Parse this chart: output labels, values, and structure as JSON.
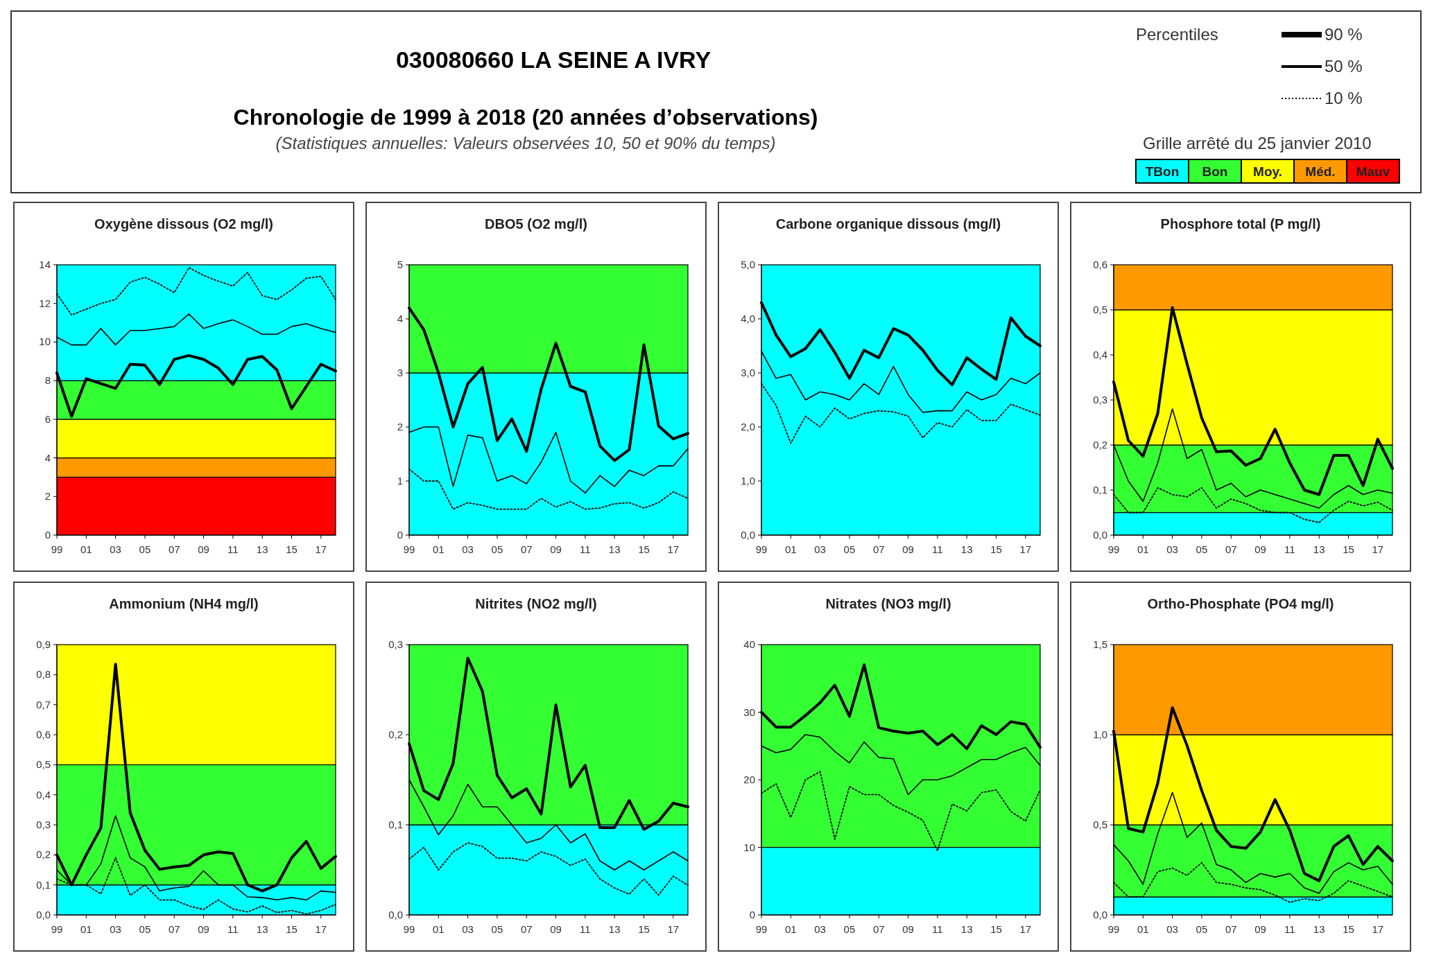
{
  "chart_data": [
    {
      "type": "other",
      "title": "030080660 LA SEINE A IVRY",
      "subtitle": "Chronologie de 1999 à 2018 (20 années d’observations)",
      "annotations": [
        "(Statistiques annuelles: Valeurs observées 10, 50 et 90% du temps)",
        "Grille arrêté du 25 janvier 2010"
      ],
      "categories": [
        "TBon",
        "Bon",
        "Moy.",
        "Méd.",
        "Mauv"
      ],
      "colors": [
        "#00ffff",
        "#33ff33",
        "#ffff00",
        "#ff9900",
        "#ff0000"
      ]
    },
    {
      "type": "line",
      "title": "Oxygène dissous (O2 mg/l)",
      "legend_title": "Percentiles",
      "legend": "top right",
      "x": [
        1999,
        2000,
        2001,
        2002,
        2003,
        2004,
        2005,
        2006,
        2007,
        2008,
        2009,
        2010,
        2011,
        2012,
        2013,
        2014,
        2015,
        2016,
        2017,
        2018
      ],
      "xlim": [
        1999,
        2018
      ],
      "xticks": [
        {
          "value": 1999,
          "label": "99"
        },
        {
          "value": 2001,
          "label": "01"
        },
        {
          "value": 2003,
          "label": "03"
        },
        {
          "value": 2005,
          "label": "05"
        },
        {
          "value": 2007,
          "label": "07"
        },
        {
          "value": 2009,
          "label": "09"
        },
        {
          "value": 2011,
          "label": "11"
        },
        {
          "value": 2013,
          "label": "13"
        },
        {
          "value": 2015,
          "label": "15"
        },
        {
          "value": 2017,
          "label": "17"
        }
      ],
      "ylim": [
        0,
        14
      ],
      "yticks": [
        0,
        2,
        4,
        6,
        8,
        10,
        12,
        14
      ],
      "bands": [
        {
          "axis": "y",
          "from": 0,
          "to": 3,
          "color": "#ff0000"
        },
        {
          "axis": "y",
          "from": 3,
          "to": 4,
          "color": "#ff9900"
        },
        {
          "axis": "y",
          "from": 4,
          "to": 6,
          "color": "#ffff00"
        },
        {
          "axis": "y",
          "from": 6,
          "to": 8,
          "color": "#33ff33"
        },
        {
          "axis": "y",
          "from": 8,
          "to": 14,
          "color": "#00ffff"
        }
      ],
      "series": [
        {
          "name": "90 %",
          "color": "#000000",
          "line_style": "solid",
          "values": [
            8.4,
            6.15,
            8.1,
            7.85,
            7.6,
            8.85,
            8.8,
            7.8,
            9.1,
            9.3,
            9.1,
            8.65,
            7.8,
            9.1,
            9.25,
            8.55,
            6.55,
            7.7,
            8.85,
            8.5
          ]
        },
        {
          "name": "50 %",
          "color": "#000000",
          "line_style": "solid",
          "values": [
            10.25,
            9.85,
            9.85,
            10.7,
            9.85,
            10.6,
            10.6,
            10.7,
            10.8,
            11.45,
            10.7,
            10.95,
            11.15,
            10.8,
            10.4,
            10.4,
            10.8,
            10.95,
            10.7,
            10.5
          ]
        },
        {
          "name": "10 %",
          "color": "#000000",
          "line_style": "dotted",
          "values": [
            12.5,
            11.4,
            11.7,
            12.0,
            12.2,
            13.1,
            13.35,
            13.0,
            12.55,
            13.85,
            13.45,
            13.15,
            12.9,
            13.6,
            12.4,
            12.2,
            12.7,
            13.3,
            13.4,
            12.2
          ]
        }
      ]
    },
    {
      "type": "line",
      "title": "DBO5 (O2 mg/l)",
      "x": [
        1999,
        2000,
        2001,
        2002,
        2003,
        2004,
        2005,
        2006,
        2007,
        2008,
        2009,
        2010,
        2011,
        2012,
        2013,
        2014,
        2015,
        2016,
        2017,
        2018
      ],
      "xlim": [
        1999,
        2018
      ],
      "xticks": [
        {
          "value": 1999,
          "label": "99"
        },
        {
          "value": 2001,
          "label": "01"
        },
        {
          "value": 2003,
          "label": "03"
        },
        {
          "value": 2005,
          "label": "05"
        },
        {
          "value": 2007,
          "label": "07"
        },
        {
          "value": 2009,
          "label": "09"
        },
        {
          "value": 2011,
          "label": "11"
        },
        {
          "value": 2013,
          "label": "13"
        },
        {
          "value": 2015,
          "label": "15"
        },
        {
          "value": 2017,
          "label": "17"
        }
      ],
      "ylim": [
        0,
        5
      ],
      "yticks": [
        0,
        1,
        2,
        3,
        4,
        5
      ],
      "bands": [
        {
          "axis": "y",
          "from": 0,
          "to": 3,
          "color": "#00ffff"
        },
        {
          "axis": "y",
          "from": 3,
          "to": 5,
          "color": "#33ff33"
        }
      ],
      "series": [
        {
          "color": "#000000",
          "line_style": "solid",
          "values": [
            4.2,
            3.8,
            3.0,
            2.0,
            2.8,
            3.1,
            1.75,
            2.15,
            1.55,
            2.7,
            3.55,
            2.75,
            2.65,
            1.65,
            1.38,
            1.58,
            3.52,
            2.02,
            1.78,
            1.88
          ]
        },
        {
          "color": "#000000",
          "line_style": "solid",
          "values": [
            1.9,
            2.0,
            2.0,
            0.9,
            1.85,
            1.8,
            1.0,
            1.1,
            0.95,
            1.35,
            1.9,
            1.0,
            0.78,
            1.1,
            0.9,
            1.2,
            1.1,
            1.28,
            1.28,
            1.6
          ]
        },
        {
          "color": "#000000",
          "line_style": "dotted",
          "values": [
            1.22,
            1.0,
            1.0,
            0.48,
            0.6,
            0.55,
            0.48,
            0.48,
            0.48,
            0.68,
            0.52,
            0.62,
            0.48,
            0.5,
            0.58,
            0.6,
            0.5,
            0.6,
            0.8,
            0.68
          ]
        }
      ]
    },
    {
      "type": "line",
      "title": "Carbone organique dissous (mg/l)",
      "x": [
        1999,
        2000,
        2001,
        2002,
        2003,
        2004,
        2005,
        2006,
        2007,
        2008,
        2009,
        2010,
        2011,
        2012,
        2013,
        2014,
        2015,
        2016,
        2017,
        2018
      ],
      "xlim": [
        1999,
        2018
      ],
      "xticks": [
        {
          "value": 1999,
          "label": "99"
        },
        {
          "value": 2001,
          "label": "01"
        },
        {
          "value": 2003,
          "label": "03"
        },
        {
          "value": 2005,
          "label": "05"
        },
        {
          "value": 2007,
          "label": "07"
        },
        {
          "value": 2009,
          "label": "09"
        },
        {
          "value": 2011,
          "label": "11"
        },
        {
          "value": 2013,
          "label": "13"
        },
        {
          "value": 2015,
          "label": "15"
        },
        {
          "value": 2017,
          "label": "17"
        }
      ],
      "ylim": [
        0,
        5
      ],
      "yticks": [
        {
          "value": 0,
          "label": "0,0"
        },
        {
          "value": 1,
          "label": "1,0"
        },
        {
          "value": 2,
          "label": "2,0"
        },
        {
          "value": 3,
          "label": "3,0"
        },
        {
          "value": 4,
          "label": "4,0"
        },
        {
          "value": 5,
          "label": "5,0"
        }
      ],
      "bands": [
        {
          "axis": "y",
          "from": 0,
          "to": 5,
          "color": "#00ffff"
        }
      ],
      "series": [
        {
          "color": "#000000",
          "line_style": "solid",
          "values": [
            4.3,
            3.7,
            3.3,
            3.45,
            3.8,
            3.38,
            2.9,
            3.42,
            3.28,
            3.82,
            3.7,
            3.42,
            3.05,
            2.78,
            3.28,
            3.07,
            2.88,
            4.02,
            3.68,
            3.5
          ]
        },
        {
          "color": "#000000",
          "line_style": "solid",
          "values": [
            3.4,
            2.9,
            2.97,
            2.5,
            2.65,
            2.6,
            2.5,
            2.8,
            2.6,
            3.12,
            2.6,
            2.27,
            2.3,
            2.3,
            2.65,
            2.5,
            2.6,
            2.9,
            2.8,
            3.0
          ]
        },
        {
          "color": "#000000",
          "line_style": "dotted",
          "values": [
            2.8,
            2.4,
            1.7,
            2.2,
            2.0,
            2.35,
            2.15,
            2.25,
            2.3,
            2.28,
            2.2,
            1.8,
            2.08,
            2.0,
            2.32,
            2.12,
            2.12,
            2.42,
            2.32,
            2.22
          ]
        }
      ]
    },
    {
      "type": "line",
      "title": "Phosphore total (P mg/l)",
      "x": [
        1999,
        2000,
        2001,
        2002,
        2003,
        2004,
        2005,
        2006,
        2007,
        2008,
        2009,
        2010,
        2011,
        2012,
        2013,
        2014,
        2015,
        2016,
        2017,
        2018
      ],
      "xlim": [
        1999,
        2018
      ],
      "xticks": [
        {
          "value": 1999,
          "label": "99"
        },
        {
          "value": 2001,
          "label": "01"
        },
        {
          "value": 2003,
          "label": "03"
        },
        {
          "value": 2005,
          "label": "05"
        },
        {
          "value": 2007,
          "label": "07"
        },
        {
          "value": 2009,
          "label": "09"
        },
        {
          "value": 2011,
          "label": "11"
        },
        {
          "value": 2013,
          "label": "13"
        },
        {
          "value": 2015,
          "label": "15"
        },
        {
          "value": 2017,
          "label": "17"
        }
      ],
      "ylim": [
        0,
        0.6
      ],
      "yticks": [
        {
          "value": 0,
          "label": "0,0"
        },
        {
          "value": 0.1,
          "label": "0,1"
        },
        {
          "value": 0.2,
          "label": "0,2"
        },
        {
          "value": 0.3,
          "label": "0,3"
        },
        {
          "value": 0.4,
          "label": "0,4"
        },
        {
          "value": 0.5,
          "label": "0,5"
        },
        {
          "value": 0.6,
          "label": "0,6"
        }
      ],
      "bands": [
        {
          "axis": "y",
          "from": 0,
          "to": 0.05,
          "color": "#00ffff"
        },
        {
          "axis": "y",
          "from": 0.05,
          "to": 0.2,
          "color": "#33ff33"
        },
        {
          "axis": "y",
          "from": 0.2,
          "to": 0.5,
          "color": "#ffff00"
        },
        {
          "axis": "y",
          "from": 0.5,
          "to": 0.6,
          "color": "#ff9900"
        }
      ],
      "series": [
        {
          "color": "#000000",
          "line_style": "solid",
          "values": [
            0.34,
            0.21,
            0.175,
            0.27,
            0.505,
            0.38,
            0.26,
            0.185,
            0.187,
            0.155,
            0.17,
            0.235,
            0.16,
            0.1,
            0.09,
            0.177,
            0.177,
            0.11,
            0.213,
            0.148
          ]
        },
        {
          "color": "#000000",
          "line_style": "solid",
          "values": [
            0.2,
            0.12,
            0.075,
            0.16,
            0.28,
            0.17,
            0.19,
            0.1,
            0.115,
            0.085,
            0.1,
            0.09,
            0.08,
            0.07,
            0.06,
            0.09,
            0.11,
            0.09,
            0.1,
            0.093
          ]
        },
        {
          "color": "#000000",
          "line_style": "dotted",
          "values": [
            0.09,
            0.05,
            0.05,
            0.105,
            0.09,
            0.085,
            0.105,
            0.06,
            0.08,
            0.07,
            0.055,
            0.05,
            0.05,
            0.035,
            0.028,
            0.055,
            0.075,
            0.065,
            0.073,
            0.055
          ]
        }
      ]
    },
    {
      "type": "line",
      "title": "Ammonium (NH4 mg/l)",
      "x": [
        1999,
        2000,
        2001,
        2002,
        2003,
        2004,
        2005,
        2006,
        2007,
        2008,
        2009,
        2010,
        2011,
        2012,
        2013,
        2014,
        2015,
        2016,
        2017,
        2018
      ],
      "xlim": [
        1999,
        2018
      ],
      "xticks": [
        {
          "value": 1999,
          "label": "99"
        },
        {
          "value": 2001,
          "label": "01"
        },
        {
          "value": 2003,
          "label": "03"
        },
        {
          "value": 2005,
          "label": "05"
        },
        {
          "value": 2007,
          "label": "07"
        },
        {
          "value": 2009,
          "label": "09"
        },
        {
          "value": 2011,
          "label": "11"
        },
        {
          "value": 2013,
          "label": "13"
        },
        {
          "value": 2015,
          "label": "15"
        },
        {
          "value": 2017,
          "label": "17"
        }
      ],
      "ylim": [
        0,
        0.9
      ],
      "yticks": [
        {
          "value": 0,
          "label": "0,0"
        },
        {
          "value": 0.1,
          "label": "0,1"
        },
        {
          "value": 0.2,
          "label": "0,2"
        },
        {
          "value": 0.3,
          "label": "0,3"
        },
        {
          "value": 0.4,
          "label": "0,4"
        },
        {
          "value": 0.5,
          "label": "0,5"
        },
        {
          "value": 0.6,
          "label": "0,6"
        },
        {
          "value": 0.7,
          "label": "0,7"
        },
        {
          "value": 0.8,
          "label": "0,8"
        },
        {
          "value": 0.9,
          "label": "0,9"
        }
      ],
      "bands": [
        {
          "axis": "y",
          "from": 0,
          "to": 0.1,
          "color": "#00ffff"
        },
        {
          "axis": "y",
          "from": 0.1,
          "to": 0.5,
          "color": "#33ff33"
        },
        {
          "axis": "y",
          "from": 0.5,
          "to": 0.9,
          "color": "#ffff00"
        }
      ],
      "series": [
        {
          "color": "#000000",
          "line_style": "solid",
          "values": [
            0.2,
            0.1,
            0.2,
            0.29,
            0.835,
            0.34,
            0.215,
            0.152,
            0.16,
            0.165,
            0.2,
            0.21,
            0.205,
            0.1,
            0.08,
            0.1,
            0.19,
            0.245,
            0.155,
            0.195
          ]
        },
        {
          "color": "#000000",
          "line_style": "solid",
          "values": [
            0.15,
            0.1,
            0.1,
            0.17,
            0.33,
            0.19,
            0.16,
            0.08,
            0.09,
            0.095,
            0.147,
            0.1,
            0.1,
            0.06,
            0.058,
            0.05,
            0.058,
            0.05,
            0.08,
            0.075
          ]
        },
        {
          "color": "#000000",
          "line_style": "dotted",
          "values": [
            0.12,
            0.1,
            0.1,
            0.07,
            0.19,
            0.065,
            0.1,
            0.05,
            0.05,
            0.03,
            0.018,
            0.05,
            0.02,
            0.01,
            0.03,
            0.008,
            0.015,
            0.003,
            0.015,
            0.035
          ]
        }
      ]
    },
    {
      "type": "line",
      "title": "Nitrites  (NO2 mg/l)",
      "x": [
        1999,
        2000,
        2001,
        2002,
        2003,
        2004,
        2005,
        2006,
        2007,
        2008,
        2009,
        2010,
        2011,
        2012,
        2013,
        2014,
        2015,
        2016,
        2017,
        2018
      ],
      "xlim": [
        1999,
        2018
      ],
      "xticks": [
        {
          "value": 1999,
          "label": "99"
        },
        {
          "value": 2001,
          "label": "01"
        },
        {
          "value": 2003,
          "label": "03"
        },
        {
          "value": 2005,
          "label": "05"
        },
        {
          "value": 2007,
          "label": "07"
        },
        {
          "value": 2009,
          "label": "09"
        },
        {
          "value": 2011,
          "label": "11"
        },
        {
          "value": 2013,
          "label": "13"
        },
        {
          "value": 2015,
          "label": "15"
        },
        {
          "value": 2017,
          "label": "17"
        }
      ],
      "ylim": [
        0,
        0.3
      ],
      "yticks": [
        {
          "value": 0,
          "label": "0,0"
        },
        {
          "value": 0.1,
          "label": "0,1"
        },
        {
          "value": 0.2,
          "label": "0,2"
        },
        {
          "value": 0.3,
          "label": "0,3"
        }
      ],
      "bands": [
        {
          "axis": "y",
          "from": 0,
          "to": 0.1,
          "color": "#00ffff"
        },
        {
          "axis": "y",
          "from": 0.1,
          "to": 0.3,
          "color": "#33ff33"
        }
      ],
      "series": [
        {
          "color": "#000000",
          "line_style": "solid",
          "values": [
            0.19,
            0.138,
            0.128,
            0.168,
            0.285,
            0.248,
            0.155,
            0.13,
            0.14,
            0.112,
            0.233,
            0.142,
            0.166,
            0.097,
            0.097,
            0.127,
            0.095,
            0.104,
            0.124,
            0.12
          ]
        },
        {
          "color": "#000000",
          "line_style": "solid",
          "values": [
            0.15,
            0.12,
            0.089,
            0.11,
            0.145,
            0.12,
            0.12,
            0.1,
            0.08,
            0.085,
            0.1,
            0.08,
            0.09,
            0.06,
            0.05,
            0.06,
            0.05,
            0.06,
            0.07,
            0.06
          ]
        },
        {
          "color": "#000000",
          "line_style": "dotted",
          "values": [
            0.062,
            0.075,
            0.05,
            0.07,
            0.08,
            0.076,
            0.063,
            0.063,
            0.06,
            0.07,
            0.065,
            0.055,
            0.062,
            0.04,
            0.03,
            0.023,
            0.04,
            0.022,
            0.043,
            0.033
          ]
        }
      ]
    },
    {
      "type": "line",
      "title": "Nitrates  (NO3 mg/l)",
      "x": [
        1999,
        2000,
        2001,
        2002,
        2003,
        2004,
        2005,
        2006,
        2007,
        2008,
        2009,
        2010,
        2011,
        2012,
        2013,
        2014,
        2015,
        2016,
        2017,
        2018
      ],
      "xlim": [
        1999,
        2018
      ],
      "xticks": [
        {
          "value": 1999,
          "label": "99"
        },
        {
          "value": 2001,
          "label": "01"
        },
        {
          "value": 2003,
          "label": "03"
        },
        {
          "value": 2005,
          "label": "05"
        },
        {
          "value": 2007,
          "label": "07"
        },
        {
          "value": 2009,
          "label": "09"
        },
        {
          "value": 2011,
          "label": "11"
        },
        {
          "value": 2013,
          "label": "13"
        },
        {
          "value": 2015,
          "label": "15"
        },
        {
          "value": 2017,
          "label": "17"
        }
      ],
      "ylim": [
        0,
        40
      ],
      "yticks": [
        0,
        10,
        20,
        30,
        40
      ],
      "bands": [
        {
          "axis": "y",
          "from": 0,
          "to": 10,
          "color": "#00ffff"
        },
        {
          "axis": "y",
          "from": 10,
          "to": 40,
          "color": "#33ff33"
        }
      ],
      "series": [
        {
          "color": "#000000",
          "line_style": "solid",
          "values": [
            30,
            27.8,
            27.8,
            29.5,
            31.4,
            34,
            29.4,
            37,
            27.7,
            27.2,
            26.9,
            27.2,
            25.2,
            26.7,
            24.6,
            28,
            26.7,
            28.6,
            28.2,
            24.8
          ]
        },
        {
          "color": "#000000",
          "line_style": "solid",
          "values": [
            25,
            24,
            24.5,
            26.7,
            26.3,
            24.2,
            22.5,
            25.6,
            23.3,
            23.1,
            17.8,
            20,
            20,
            20.6,
            21.8,
            23,
            23,
            24,
            24.8,
            22.1
          ]
        },
        {
          "color": "#000000",
          "line_style": "dotted",
          "values": [
            18,
            19.4,
            14.4,
            20,
            21.2,
            11.2,
            19,
            17.8,
            17.8,
            16.2,
            15.2,
            14,
            9.5,
            16.4,
            15.4,
            18.1,
            18.5,
            15.3,
            13.9,
            18.5
          ]
        }
      ]
    },
    {
      "type": "line",
      "title": "Ortho-Phosphate (PO4 mg/l)",
      "x": [
        1999,
        2000,
        2001,
        2002,
        2003,
        2004,
        2005,
        2006,
        2007,
        2008,
        2009,
        2010,
        2011,
        2012,
        2013,
        2014,
        2015,
        2016,
        2017,
        2018
      ],
      "xlim": [
        1999,
        2018
      ],
      "xticks": [
        {
          "value": 1999,
          "label": "99"
        },
        {
          "value": 2001,
          "label": "01"
        },
        {
          "value": 2003,
          "label": "03"
        },
        {
          "value": 2005,
          "label": "05"
        },
        {
          "value": 2007,
          "label": "07"
        },
        {
          "value": 2009,
          "label": "09"
        },
        {
          "value": 2011,
          "label": "11"
        },
        {
          "value": 2013,
          "label": "13"
        },
        {
          "value": 2015,
          "label": "15"
        },
        {
          "value": 2017,
          "label": "17"
        }
      ],
      "ylim": [
        0,
        1.5
      ],
      "yticks": [
        {
          "value": 0,
          "label": "0,0"
        },
        {
          "value": 0.5,
          "label": "0,5"
        },
        {
          "value": 1,
          "label": "1,0"
        },
        {
          "value": 1.5,
          "label": "1,5"
        }
      ],
      "bands": [
        {
          "axis": "y",
          "from": 0,
          "to": 0.1,
          "color": "#00ffff"
        },
        {
          "axis": "y",
          "from": 0.1,
          "to": 0.5,
          "color": "#33ff33"
        },
        {
          "axis": "y",
          "from": 0.5,
          "to": 1,
          "color": "#ffff00"
        },
        {
          "axis": "y",
          "from": 1,
          "to": 1.5,
          "color": "#ff9900"
        }
      ],
      "series": [
        {
          "color": "#000000",
          "line_style": "solid",
          "values": [
            1.02,
            0.48,
            0.46,
            0.73,
            1.15,
            0.94,
            0.69,
            0.47,
            0.38,
            0.37,
            0.46,
            0.64,
            0.47,
            0.23,
            0.19,
            0.38,
            0.44,
            0.28,
            0.38,
            0.3
          ]
        },
        {
          "color": "#000000",
          "line_style": "solid",
          "values": [
            0.39,
            0.3,
            0.17,
            0.45,
            0.68,
            0.43,
            0.51,
            0.28,
            0.25,
            0.18,
            0.23,
            0.21,
            0.23,
            0.15,
            0.12,
            0.24,
            0.29,
            0.25,
            0.27,
            0.17
          ]
        },
        {
          "color": "#000000",
          "line_style": "dotted",
          "values": [
            0.18,
            0.1,
            0.1,
            0.24,
            0.26,
            0.22,
            0.29,
            0.18,
            0.17,
            0.15,
            0.14,
            0.11,
            0.07,
            0.09,
            0.08,
            0.12,
            0.19,
            0.16,
            0.13,
            0.1
          ]
        }
      ]
    }
  ]
}
